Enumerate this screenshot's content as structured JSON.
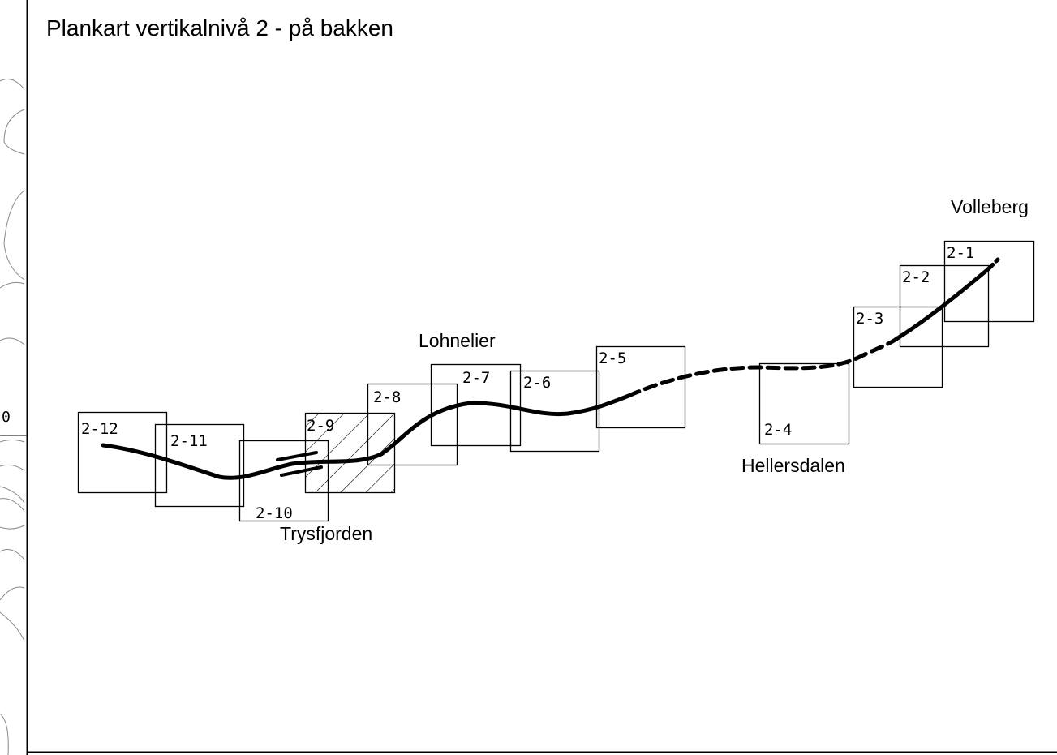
{
  "title": "Plankart vertikalnivå 2 - på bakken",
  "edge_label": "0",
  "places": [
    "Volleberg",
    "Lohnelier",
    "Hellersdalen",
    "Trysfjorden"
  ],
  "sheets": [
    "2-1",
    "2-2",
    "2-3",
    "2-4",
    "2-5",
    "2-6",
    "2-7",
    "2-8",
    "2-9",
    "2-10",
    "2-11",
    "2-12"
  ]
}
